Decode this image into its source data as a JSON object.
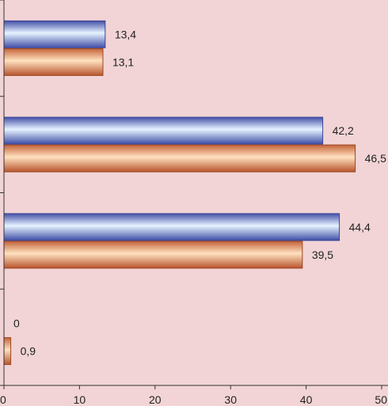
{
  "chart_data": {
    "type": "bar",
    "orientation": "horizontal",
    "categories": [
      "",
      "",
      "",
      ""
    ],
    "series": [
      {
        "values": [
          13.4,
          42.2,
          44.4,
          0
        ],
        "labels": [
          "13,4",
          "42,2",
          "44,4",
          "0"
        ],
        "color": "#6f86d8"
      },
      {
        "values": [
          13.1,
          46.5,
          39.5,
          0.9
        ],
        "labels": [
          "13,1",
          "46,5",
          "39,5",
          "0,9"
        ],
        "color": "#e99a5f"
      }
    ],
    "xlim": [
      0,
      50
    ],
    "x_ticks": [
      0,
      10,
      20,
      30,
      40,
      50
    ],
    "x_tick_labels": [
      "0",
      "10",
      "20",
      "30",
      "40",
      "50"
    ],
    "grid": false,
    "legend": "none",
    "background": "#f2d4d6"
  }
}
